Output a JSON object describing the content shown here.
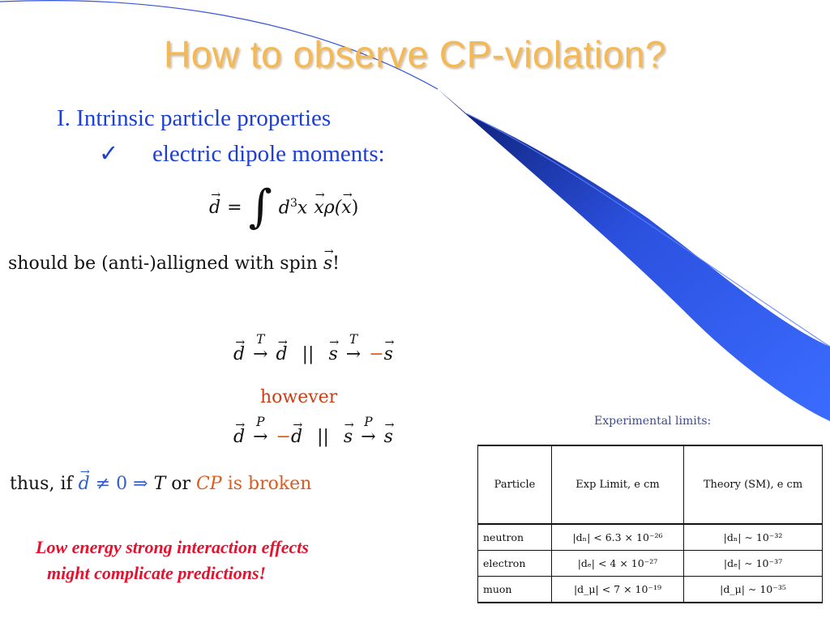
{
  "slide": {
    "title": "How to observe CP-violation?",
    "item1": "I. Intrinsic particle properties",
    "item2": {
      "check_glyph": "✓",
      "text": "electric dipole moments:"
    },
    "equation_dipole": {
      "lhs": "d",
      "equals": "=",
      "integral": "∫",
      "measure": "d",
      "measure_exp": "3",
      "variable": "x",
      "integrand_vec": "x",
      "rho": "ρ(",
      "rho_vec": "x",
      "close": ")"
    },
    "spin_line": {
      "text": "should be (anti-)alligned with spin",
      "vec": "s",
      "end": "!"
    },
    "time_reversal": {
      "d": "d",
      "arrow": "→",
      "label": "T",
      "result": "d",
      "sep": "||",
      "s": "s",
      "arrow2": "→",
      "label2": "T",
      "minus": "−",
      "result2": "s"
    },
    "however": "however",
    "parity": {
      "d": "d",
      "arrow": "→",
      "label": "P",
      "minus": "−",
      "result": "d",
      "sep": "||",
      "s": "s",
      "arrow2": "→",
      "label2": "P",
      "result2": "s"
    },
    "thus_line": {
      "prefix": "thus, if",
      "d": "d",
      "neq": "≠ 0 ⇒",
      "t": "T",
      "or": "or",
      "cp": "CP",
      "broken": "is broken"
    },
    "warning_lines": [
      "Low energy strong interaction effects",
      "might complicate predictions!"
    ],
    "experimental_limits": {
      "caption": "Experimental limits:",
      "headers": [
        "Particle",
        "Exp Limit,  e cm",
        "Theory (SM), e cm"
      ],
      "rows": [
        {
          "particle": "neutron",
          "exp": "|dₙ| < 6.3 × 10⁻²⁶",
          "theory": "|dₙ| ∼ 10⁻³²"
        },
        {
          "particle": "electron",
          "exp": "|dₑ| < 4 × 10⁻²⁷",
          "theory": "|dₑ| ∼ 10⁻³⁷"
        },
        {
          "particle": "muon",
          "exp": "|d_μ| < 7 × 10⁻¹⁹",
          "theory": "|d_μ| ∼ 10⁻³⁵"
        }
      ]
    }
  },
  "colors": {
    "title": "#f4b955",
    "body_text": "#1c3fd6",
    "swoosh": "#2d55e8",
    "warning": "#e8102c",
    "highlight": "#e05a1a"
  }
}
